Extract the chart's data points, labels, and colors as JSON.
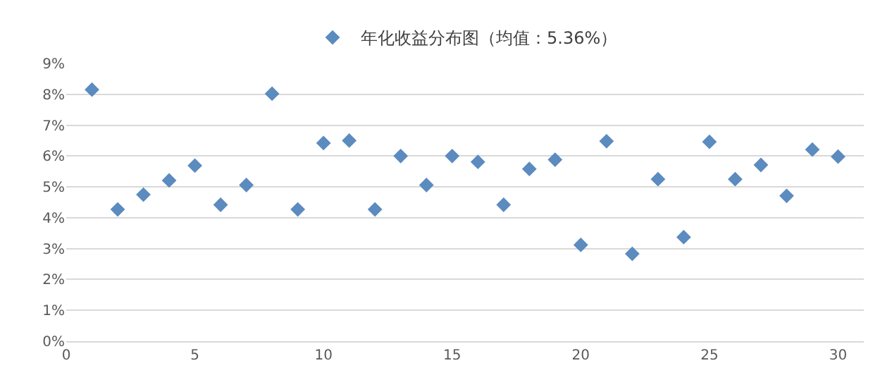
{
  "chart_data": {
    "type": "scatter",
    "legend": "top",
    "grid": "y",
    "marker": "diamond",
    "x": [
      1,
      2,
      3,
      4,
      5,
      6,
      7,
      8,
      9,
      10,
      11,
      12,
      13,
      14,
      15,
      16,
      17,
      18,
      19,
      20,
      21,
      22,
      23,
      24,
      25,
      26,
      27,
      28,
      29,
      30
    ],
    "series": [
      {
        "name": "年化收益分布图（均值：5.36%）",
        "color": "#5b8bbf",
        "values": [
          8.15,
          4.27,
          4.75,
          5.21,
          5.69,
          4.42,
          5.06,
          8.02,
          4.27,
          6.42,
          6.5,
          4.27,
          6.0,
          5.06,
          6.0,
          5.81,
          4.42,
          5.58,
          5.88,
          3.12,
          6.48,
          2.83,
          5.25,
          3.37,
          6.46,
          5.25,
          5.71,
          4.71,
          6.21,
          5.98
        ]
      }
    ],
    "xlim": [
      0,
      31
    ],
    "xticks": [
      0,
      5,
      10,
      15,
      20,
      25,
      30
    ],
    "ylim": [
      0,
      9
    ],
    "yticks": [
      {
        "value": 0,
        "label": "0%"
      },
      {
        "value": 1,
        "label": "1%"
      },
      {
        "value": 2,
        "label": "2%"
      },
      {
        "value": 3,
        "label": "3%"
      },
      {
        "value": 4,
        "label": "4%"
      },
      {
        "value": 5,
        "label": "5%"
      },
      {
        "value": 6,
        "label": "6%"
      },
      {
        "value": 7,
        "label": "7%"
      },
      {
        "value": 8,
        "label": "8%"
      },
      {
        "value": 9,
        "label": "9%"
      }
    ]
  }
}
